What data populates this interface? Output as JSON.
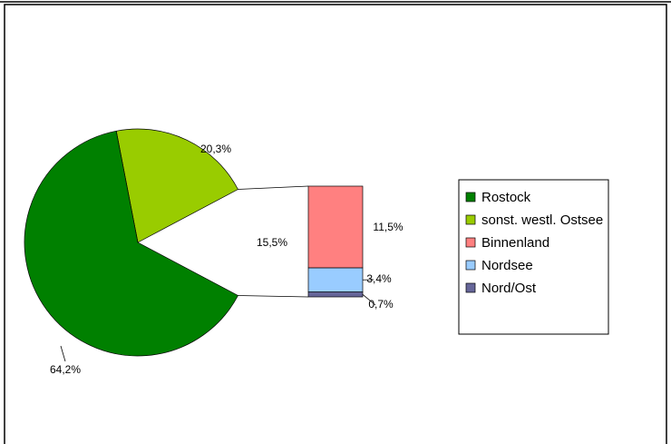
{
  "chart_data": {
    "type": "bar_of_pie",
    "pie": {
      "categories": [
        "Rostock",
        "sonst. westl. Ostsee"
      ],
      "values": [
        64.2,
        20.3
      ],
      "value_labels": [
        "64,2%",
        "20,3%"
      ],
      "colors": [
        "#008000",
        "#99cc00"
      ]
    },
    "other_value": 15.5,
    "other_value_label": "15,5%",
    "bar": {
      "categories": [
        "Binnenland",
        "Nordsee",
        "Nord/Ost"
      ],
      "values": [
        11.5,
        3.4,
        0.7
      ],
      "value_labels": [
        "11,5%",
        "3,4%",
        "0,7%"
      ],
      "colors": [
        "#ff8080",
        "#99ccff",
        "#666699"
      ]
    },
    "legend": "right"
  }
}
